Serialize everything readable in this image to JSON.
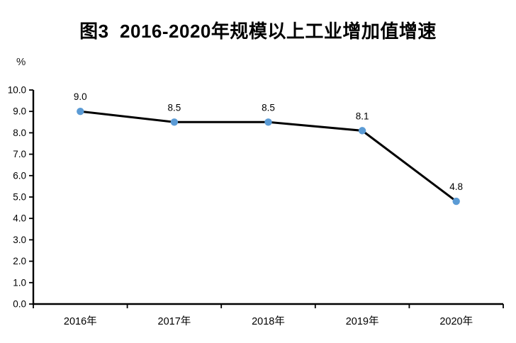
{
  "figure": {
    "y_unit_label": "%"
  },
  "chart_data": {
    "type": "line",
    "title": "图3  2016-2020年规模以上工业增加值增速",
    "categories": [
      "2016年",
      "2017年",
      "2018年",
      "2019年",
      "2020年"
    ],
    "values": [
      9.0,
      8.5,
      8.5,
      8.1,
      4.8
    ],
    "data_labels": [
      "9.0",
      "8.5",
      "8.5",
      "8.1",
      "4.8"
    ],
    "xlabel": "",
    "ylabel": "%",
    "ylim": [
      0.0,
      10.0
    ],
    "ytick_step": 1.0,
    "ytick_labels": [
      "0.0",
      "1.0",
      "2.0",
      "3.0",
      "4.0",
      "5.0",
      "6.0",
      "7.0",
      "8.0",
      "9.0",
      "10.0"
    ],
    "grid": false,
    "legend": "none",
    "line_color": "#000000",
    "marker_color": "#5B9BD5",
    "axis_color": "#000000",
    "text_color": "#000000"
  }
}
